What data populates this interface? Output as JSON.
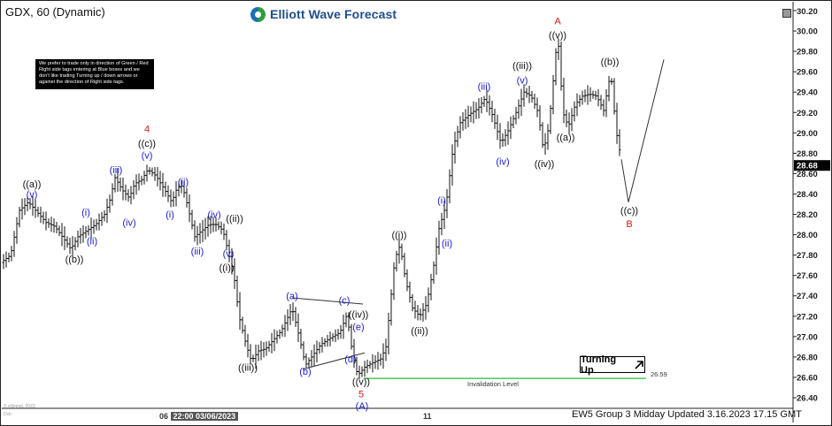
{
  "header": {
    "symbol_label": "GDX, 60 (Dynamic)",
    "brand_name": "Elliott Wave Forecast",
    "note_text": "We prefer to trade only in direction of Green / Red Right side tags entering at Blue boxes and we don't like trading Turning up / down arrows or against the direction of Right side tags."
  },
  "footer": {
    "update_text": "EW5 Group 3 Midday Updated 3.16.2023 17.15 GMT",
    "x_label_main": "06",
    "x_label_highlight": "22:00 03/06/2023",
    "x_label_11": "11",
    "credit_1": "© eSignal, 2023",
    "credit_2": "Dck:"
  },
  "turning_label": "Turning Up",
  "invalidation": {
    "label": "Invalidation Level",
    "value_label": "26.59",
    "value": 26.59
  },
  "colors": {
    "blue_labels": "#1a1adb",
    "red_labels": "#e01414",
    "black_labels": "#111111",
    "invalidation": "#27c23a"
  },
  "chart_data": {
    "type": "bar",
    "ylim": [
      26.4,
      30.2
    ],
    "y_ticks": [
      "30.20",
      "30.00",
      "29.80",
      "29.60",
      "29.40",
      "29.20",
      "29.00",
      "28.80",
      "28.60",
      "28.40",
      "28.20",
      "28.00",
      "27.80",
      "27.60",
      "27.40",
      "27.20",
      "27.00",
      "26.80",
      "26.60",
      "26.40"
    ],
    "last_price": {
      "value": 28.68,
      "label": "28.68"
    },
    "price_path": [
      [
        0,
        27.72
      ],
      [
        12,
        27.8
      ],
      [
        22,
        28.24
      ],
      [
        32,
        28.32
      ],
      [
        42,
        28.22
      ],
      [
        52,
        28.12
      ],
      [
        62,
        28.08
      ],
      [
        72,
        27.96
      ],
      [
        80,
        27.86
      ],
      [
        88,
        27.98
      ],
      [
        98,
        28.04
      ],
      [
        108,
        28.1
      ],
      [
        118,
        28.2
      ],
      [
        124,
        28.34
      ],
      [
        130,
        28.56
      ],
      [
        138,
        28.44
      ],
      [
        146,
        28.36
      ],
      [
        152,
        28.5
      ],
      [
        160,
        28.54
      ],
      [
        167,
        28.64
      ],
      [
        176,
        28.58
      ],
      [
        186,
        28.44
      ],
      [
        194,
        28.32
      ],
      [
        200,
        28.46
      ],
      [
        206,
        28.48
      ],
      [
        212,
        28.28
      ],
      [
        220,
        27.98
      ],
      [
        228,
        28.04
      ],
      [
        236,
        28.1
      ],
      [
        244,
        28.1
      ],
      [
        252,
        28.04
      ],
      [
        258,
        27.82
      ],
      [
        264,
        27.62
      ],
      [
        270,
        27.2
      ],
      [
        278,
        26.92
      ],
      [
        284,
        26.76
      ],
      [
        292,
        26.86
      ],
      [
        300,
        26.88
      ],
      [
        308,
        26.96
      ],
      [
        318,
        27.06
      ],
      [
        330,
        27.28
      ],
      [
        338,
        27.0
      ],
      [
        345,
        26.72
      ],
      [
        352,
        26.8
      ],
      [
        362,
        26.92
      ],
      [
        372,
        26.98
      ],
      [
        384,
        27.04
      ],
      [
        392,
        27.22
      ],
      [
        398,
        26.84
      ],
      [
        404,
        26.62
      ],
      [
        412,
        26.7
      ],
      [
        420,
        26.74
      ],
      [
        430,
        26.78
      ],
      [
        436,
        26.9
      ],
      [
        446,
        27.76
      ],
      [
        452,
        27.9
      ],
      [
        458,
        27.56
      ],
      [
        466,
        27.28
      ],
      [
        474,
        27.2
      ],
      [
        482,
        27.32
      ],
      [
        490,
        27.7
      ],
      [
        496,
        28.06
      ],
      [
        504,
        28.3
      ],
      [
        512,
        28.86
      ],
      [
        520,
        29.1
      ],
      [
        530,
        29.18
      ],
      [
        540,
        29.24
      ],
      [
        548,
        29.34
      ],
      [
        556,
        29.18
      ],
      [
        566,
        28.9
      ],
      [
        574,
        29.02
      ],
      [
        584,
        29.22
      ],
      [
        592,
        29.4
      ],
      [
        600,
        29.36
      ],
      [
        608,
        29.2
      ],
      [
        614,
        28.82
      ],
      [
        620,
        29.06
      ],
      [
        626,
        29.6
      ],
      [
        630,
        29.98
      ],
      [
        636,
        29.2
      ],
      [
        642,
        29.06
      ],
      [
        650,
        29.28
      ],
      [
        658,
        29.36
      ],
      [
        666,
        29.38
      ],
      [
        674,
        29.36
      ],
      [
        682,
        29.22
      ],
      [
        690,
        29.6
      ],
      [
        696,
        29.02
      ],
      [
        702,
        28.74
      ]
    ],
    "projection": [
      [
        702,
        28.74
      ],
      [
        710,
        28.32
      ],
      [
        750,
        29.72
      ]
    ],
    "wave_labels": [
      {
        "text": "((a))",
        "x": 36,
        "y": 28.5,
        "color": "black"
      },
      {
        "text": "(v)",
        "x": 36,
        "y": 28.4,
        "color": "blue"
      },
      {
        "text": "((b))",
        "x": 84,
        "y": 27.76,
        "color": "black"
      },
      {
        "text": "(i)",
        "x": 97,
        "y": 28.22,
        "color": "blue"
      },
      {
        "text": "(ii)",
        "x": 104,
        "y": 27.94,
        "color": "blue"
      },
      {
        "text": "(iii)",
        "x": 131,
        "y": 28.64,
        "color": "blue"
      },
      {
        "text": "(iv)",
        "x": 146,
        "y": 28.12,
        "color": "blue"
      },
      {
        "text": "4",
        "x": 166,
        "y": 29.04,
        "color": "red"
      },
      {
        "text": "((c))",
        "x": 166,
        "y": 28.9,
        "color": "black"
      },
      {
        "text": "(v)",
        "x": 166,
        "y": 28.78,
        "color": "blue"
      },
      {
        "text": "(ii)",
        "x": 207,
        "y": 28.52,
        "color": "blue"
      },
      {
        "text": "(i)",
        "x": 192,
        "y": 28.2,
        "color": "blue"
      },
      {
        "text": "(iv)",
        "x": 242,
        "y": 28.2,
        "color": "blue"
      },
      {
        "text": "((ii))",
        "x": 265,
        "y": 28.16,
        "color": "black"
      },
      {
        "text": "(iii)",
        "x": 223,
        "y": 27.84,
        "color": "blue"
      },
      {
        "text": "(v)",
        "x": 258,
        "y": 27.82,
        "color": "blue"
      },
      {
        "text": "((i))",
        "x": 256,
        "y": 27.68,
        "color": "black"
      },
      {
        "text": "((iii))",
        "x": 280,
        "y": 26.7,
        "color": "black"
      },
      {
        "text": "(a)",
        "x": 330,
        "y": 27.4,
        "color": "blue"
      },
      {
        "text": "(b)",
        "x": 345,
        "y": 26.66,
        "color": "blue"
      },
      {
        "text": "(c)",
        "x": 389,
        "y": 27.36,
        "color": "blue"
      },
      {
        "text": "((iv))",
        "x": 405,
        "y": 27.22,
        "color": "black"
      },
      {
        "text": "(e)",
        "x": 405,
        "y": 27.1,
        "color": "blue"
      },
      {
        "text": "(d)",
        "x": 396,
        "y": 26.78,
        "color": "blue"
      },
      {
        "text": "((v))",
        "x": 408,
        "y": 26.56,
        "color": "black"
      },
      {
        "text": "5",
        "x": 408,
        "y": 26.44,
        "color": "red"
      },
      {
        "text": "(A)",
        "x": 409,
        "y": 26.32,
        "color": "blue"
      },
      {
        "text": "((i))",
        "x": 451,
        "y": 28.0,
        "color": "black"
      },
      {
        "text": "((ii))",
        "x": 474,
        "y": 27.06,
        "color": "black"
      },
      {
        "text": "(i)",
        "x": 499,
        "y": 28.34,
        "color": "blue"
      },
      {
        "text": "(ii)",
        "x": 505,
        "y": 27.92,
        "color": "blue"
      },
      {
        "text": "(iii)",
        "x": 547,
        "y": 29.46,
        "color": "blue"
      },
      {
        "text": "(iv)",
        "x": 568,
        "y": 28.72,
        "color": "blue"
      },
      {
        "text": "((iii))",
        "x": 590,
        "y": 29.66,
        "color": "black"
      },
      {
        "text": "(v)",
        "x": 590,
        "y": 29.52,
        "color": "blue"
      },
      {
        "text": "((iv))",
        "x": 615,
        "y": 28.7,
        "color": "black"
      },
      {
        "text": "A",
        "x": 630,
        "y": 30.1,
        "color": "red"
      },
      {
        "text": "((v))",
        "x": 630,
        "y": 29.96,
        "color": "black"
      },
      {
        "text": "((a))",
        "x": 639,
        "y": 28.96,
        "color": "black"
      },
      {
        "text": "((b))",
        "x": 689,
        "y": 29.7,
        "color": "black"
      },
      {
        "text": "((c))",
        "x": 711,
        "y": 28.24,
        "color": "black"
      },
      {
        "text": "B",
        "x": 711,
        "y": 28.11,
        "color": "red"
      }
    ],
    "triangle": {
      "upper": [
        [
          330,
          27.38
        ],
        [
          410,
          27.32
        ]
      ],
      "lower": [
        [
          342,
          26.68
        ],
        [
          412,
          26.84
        ]
      ]
    }
  }
}
